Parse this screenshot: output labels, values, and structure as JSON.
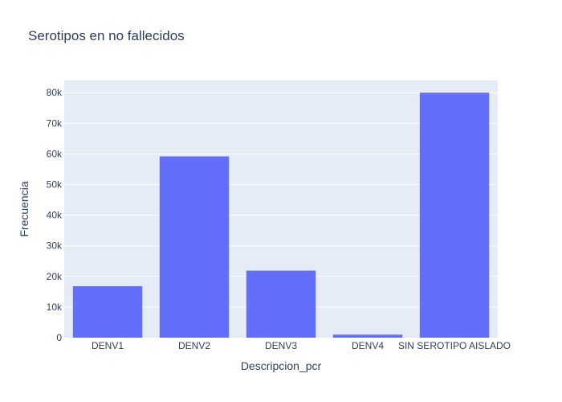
{
  "chart_data": {
    "type": "bar",
    "title": "Serotipos en no fallecidos",
    "xlabel": "Descripcion_pcr",
    "ylabel": "Frecuencia",
    "categories": [
      "DENV1",
      "DENV2",
      "DENV3",
      "DENV4",
      "SIN SEROTIPO AISLADO"
    ],
    "values": [
      16800,
      59200,
      21900,
      1000,
      80000
    ],
    "ylim": [
      0,
      84000
    ],
    "yticks": [
      0,
      10000,
      20000,
      30000,
      40000,
      50000,
      60000,
      70000,
      80000
    ],
    "ytick_labels": [
      "0",
      "10k",
      "20k",
      "30k",
      "40k",
      "50k",
      "60k",
      "70k",
      "80k"
    ],
    "grid": true,
    "colors": {
      "bar": "#636efa",
      "plot_bg": "#e5ecf6",
      "grid": "#ffffff",
      "text": "#2a3f5f"
    }
  }
}
